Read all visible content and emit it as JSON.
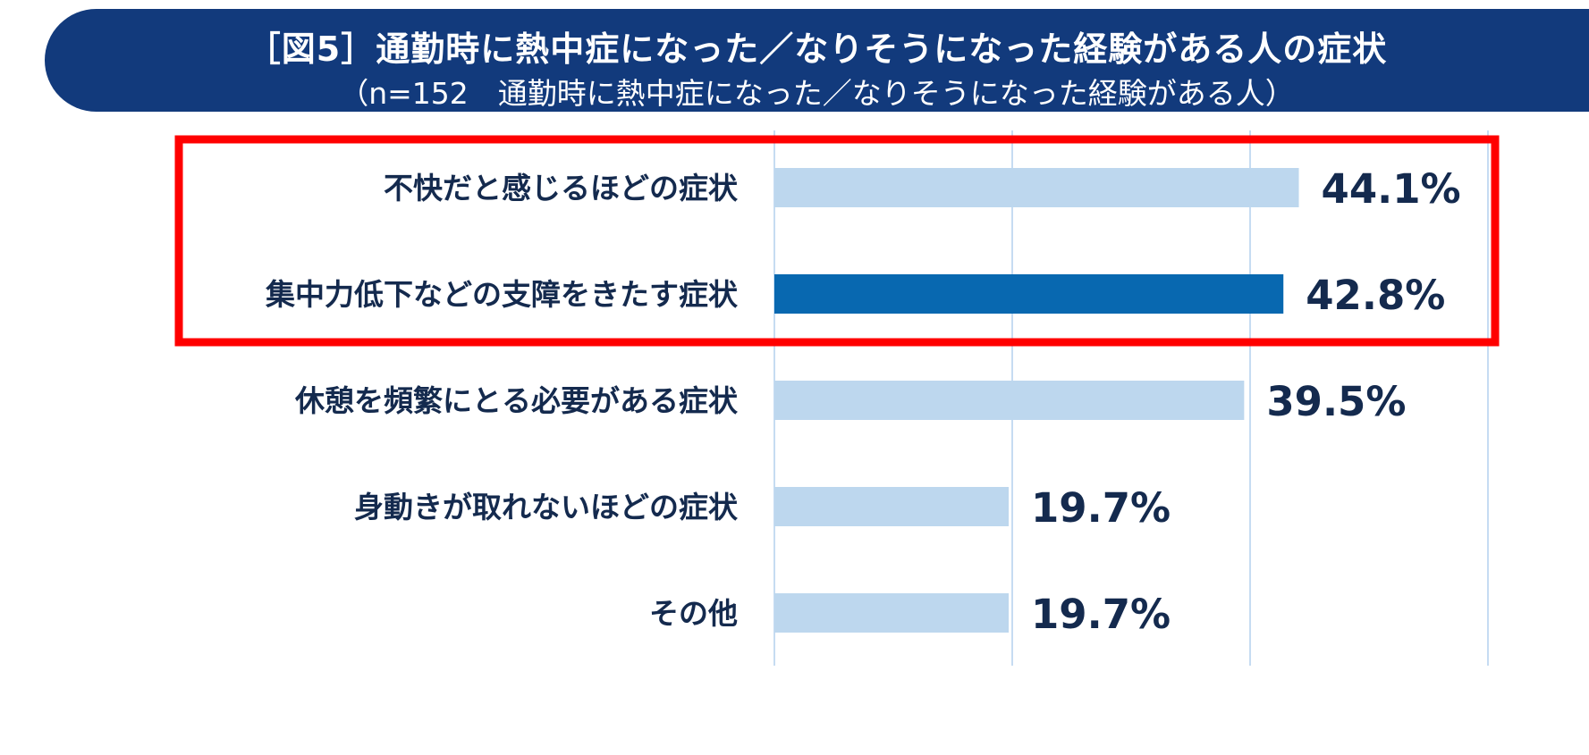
{
  "header": {
    "title": "［図5］通勤時に熱中症になった／なりそうになった経験がある人の症状",
    "subtitle": "（n=152　通勤時に熱中症になった／なりそうになった経験がある人）"
  },
  "colors": {
    "banner": "#123a7c",
    "bar_default": "#bdd7ee",
    "bar_highlight": "#0868b0",
    "label_text": "#142a4e",
    "highlight_text": "#1f78c4",
    "box": "#ff0000",
    "grid": "#c6dcf2"
  },
  "chart_data": {
    "type": "bar",
    "orientation": "horizontal",
    "categories": [
      "不快だと感じるほどの症状",
      "集中力低下などの支障をきたす症状",
      "休憩を頻繁にとる必要がある症状",
      "身動きが取れないほどの症状",
      "その他"
    ],
    "values": [
      44.1,
      42.8,
      39.5,
      19.7,
      19.7
    ],
    "value_labels": [
      "44.1%",
      "42.8%",
      "39.5%",
      "19.7%",
      "19.7%"
    ],
    "highlighted_index": 1,
    "boxed_indices": [
      0,
      1
    ],
    "xlim": [
      0,
      60
    ],
    "grid": true
  }
}
